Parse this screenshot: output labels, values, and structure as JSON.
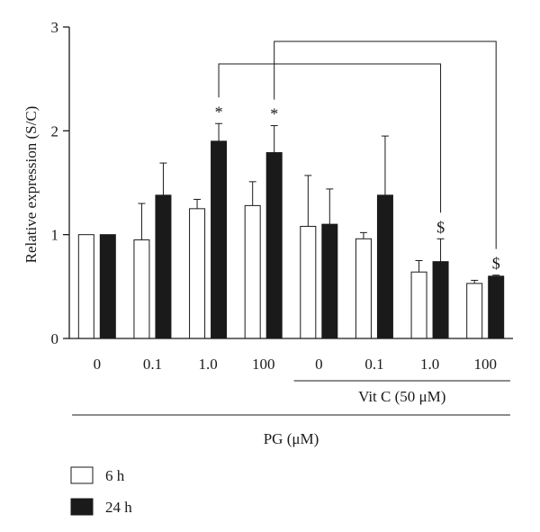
{
  "chart_data": {
    "type": "bar",
    "ylabel": "Relative expression (S/C)",
    "ylim": [
      0,
      3
    ],
    "yticks": [
      "0",
      "1",
      "2",
      "3"
    ],
    "categories": [
      "0",
      "0.1",
      "1.0",
      "100",
      "0",
      "0.1",
      "1.0",
      "100"
    ],
    "series": [
      {
        "name": "6 h",
        "fill": "#ffffff",
        "values": [
          1.0,
          0.95,
          1.25,
          1.28,
          1.08,
          0.96,
          0.64,
          0.53
        ],
        "errors": [
          0,
          0.35,
          0.09,
          0.23,
          0.49,
          0.06,
          0.11,
          0.03
        ],
        "labels": [
          "",
          "",
          "",
          "",
          "",
          "",
          "",
          ""
        ]
      },
      {
        "name": "24 h",
        "fill": "#1a1a1a",
        "values": [
          1.0,
          1.38,
          1.9,
          1.79,
          1.1,
          1.38,
          0.74,
          0.6
        ],
        "errors": [
          0,
          0.31,
          0.17,
          0.26,
          0.34,
          0.57,
          0.22,
          0.01
        ],
        "labels": [
          "",
          "",
          "*",
          "*",
          "",
          "",
          "$",
          "$"
        ]
      }
    ],
    "group_labels": [
      {
        "text": "Vit C (50 μM)",
        "from": 4,
        "to": 7
      },
      {
        "text": "PG (μM)",
        "from": 0,
        "to": 7
      }
    ],
    "comparisons": [
      {
        "from": 2,
        "to": 6
      },
      {
        "from": 3,
        "to": 7
      }
    ],
    "legend": "bottom-left",
    "grid": false
  }
}
